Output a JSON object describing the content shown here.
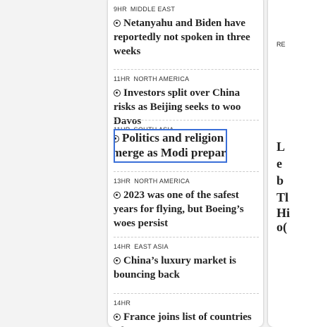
{
  "feed": {
    "items": [
      {
        "time": "9HR",
        "region": "MIDDLE EAST",
        "headline": "Netanyahu and Biden have reportedly not spoken in three weeks"
      },
      {
        "time": "11HR",
        "region": "NORTH AMERICA",
        "headline": "Investors split over China risks as Beijing seeks to woo Davos"
      },
      {
        "time": "11HR",
        "region": "SOUTH ASIA",
        "headline": "Politics and religion merge as Modi prepares to inaugurate new temple"
      },
      {
        "time": "13HR",
        "region": "NORTH AMERICA",
        "headline": "2023 was one of the safest years for flying, but Boeing’s woes persist"
      },
      {
        "time": "14HR",
        "region": "EAST ASIA",
        "headline": "China’s luxury market is bouncing back"
      },
      {
        "time": "14HR",
        "region": "",
        "headline": "France joins list of countries where"
      }
    ]
  },
  "side": {
    "fragments": [
      "RE",
      "L",
      "e",
      "b",
      "Tl",
      "Hi",
      "o("
    ]
  }
}
